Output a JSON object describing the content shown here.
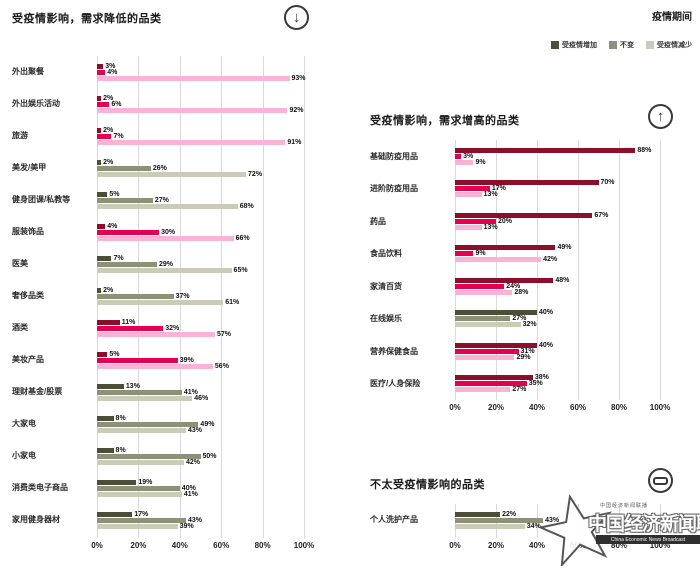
{
  "header": {
    "period_label": "疫情期间"
  },
  "legend": [
    {
      "label": "受疫情增加",
      "color": "#4c4e38"
    },
    {
      "label": "不变",
      "color": "#8e9077"
    },
    {
      "label": "受疫情减少",
      "color": "#cbcbb8"
    }
  ],
  "colors": {
    "red": {
      "increase": "#8c0e2a",
      "unchanged": "#e4004c",
      "decrease": "#f8b3d6"
    },
    "olive": {
      "increase": "#4c4e38",
      "unchanged": "#8e9077",
      "decrease": "#cbcbb8"
    },
    "grid": "#d9d9d9"
  },
  "axis_ticks": [
    "0%",
    "20%",
    "40%",
    "60%",
    "80%",
    "100%"
  ],
  "chart_data": [
    {
      "id": "decreased",
      "type": "bar",
      "title": "受疫情影响，需求降低的品类",
      "icon": "down-arrow",
      "legend_series": [
        "受疫情增加",
        "不变",
        "受疫情减少"
      ],
      "xlim": [
        0,
        100
      ],
      "rows": [
        {
          "label": "外出聚餐",
          "theme": "red",
          "values": [
            3,
            4,
            93
          ]
        },
        {
          "label": "外出娱乐活动",
          "theme": "red",
          "values": [
            2,
            6,
            92
          ]
        },
        {
          "label": "旅游",
          "theme": "red",
          "values": [
            2,
            7,
            91
          ]
        },
        {
          "label": "美发/美甲",
          "theme": "olive",
          "values": [
            2,
            26,
            72
          ]
        },
        {
          "label": "健身团课/私教等",
          "theme": "olive",
          "values": [
            5,
            27,
            68
          ]
        },
        {
          "label": "服装饰品",
          "theme": "red",
          "values": [
            4,
            30,
            66
          ]
        },
        {
          "label": "医美",
          "theme": "olive",
          "values": [
            7,
            29,
            65
          ]
        },
        {
          "label": "奢侈品类",
          "theme": "olive",
          "values": [
            2,
            37,
            61
          ]
        },
        {
          "label": "酒类",
          "theme": "red",
          "values": [
            11,
            32,
            57
          ]
        },
        {
          "label": "美妆产品",
          "theme": "red",
          "values": [
            5,
            39,
            56
          ]
        },
        {
          "label": "理财基金/股票",
          "theme": "olive",
          "values": [
            13,
            41,
            46
          ]
        },
        {
          "label": "大家电",
          "theme": "olive",
          "values": [
            8,
            49,
            43
          ]
        },
        {
          "label": "小家电",
          "theme": "olive",
          "values": [
            8,
            50,
            42
          ]
        },
        {
          "label": "消费类电子商品",
          "theme": "olive",
          "values": [
            19,
            40,
            41
          ]
        },
        {
          "label": "家用健身器材",
          "theme": "olive",
          "values": [
            17,
            43,
            39
          ]
        }
      ]
    },
    {
      "id": "increased",
      "type": "bar",
      "title": "受疫情影响，需求增高的品类",
      "icon": "up-arrow",
      "legend_series": [
        "受疫情增加",
        "不变",
        "受疫情减少"
      ],
      "xlim": [
        0,
        100
      ],
      "rows": [
        {
          "label": "基础防疫用品",
          "theme": "red",
          "values": [
            88,
            3,
            9
          ]
        },
        {
          "label": "进阶防疫用品",
          "theme": "red",
          "values": [
            70,
            17,
            13
          ]
        },
        {
          "label": "药品",
          "theme": "red",
          "values": [
            67,
            20,
            13
          ]
        },
        {
          "label": "食品饮料",
          "theme": "red",
          "values": [
            49,
            9,
            42
          ]
        },
        {
          "label": "家清百货",
          "theme": "red",
          "values": [
            48,
            24,
            28
          ]
        },
        {
          "label": "在线娱乐",
          "theme": "olive",
          "values": [
            40,
            27,
            32
          ]
        },
        {
          "label": "营养保健食品",
          "theme": "red",
          "values": [
            40,
            31,
            29
          ]
        },
        {
          "label": "医疗/人身保险",
          "theme": "red",
          "values": [
            38,
            35,
            27
          ]
        }
      ]
    },
    {
      "id": "neutral",
      "type": "bar",
      "title": "不太受疫情影响的品类",
      "icon": "dash",
      "legend_series": [
        "受疫情增加",
        "不变",
        "受疫情减少"
      ],
      "xlim": [
        0,
        100
      ],
      "rows": [
        {
          "label": "个人洗护产品",
          "theme": "olive",
          "values": [
            22,
            43,
            34
          ]
        }
      ]
    }
  ],
  "watermark": {
    "toptext": "中国经济新闻联播",
    "text": "中国经济新闻联播",
    "subtext": "China Economic News Broadcast"
  }
}
